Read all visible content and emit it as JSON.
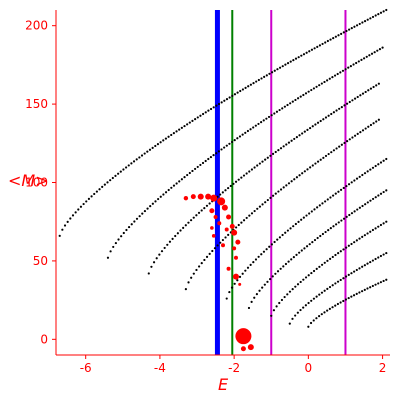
{
  "chart_data": {
    "type": "scatter",
    "xlabel": "E",
    "ylabel": "<M>",
    "xlim": [
      -6.8,
      2.2
    ],
    "ylim": [
      -10,
      210
    ],
    "xticks": [
      -6,
      -4,
      -2,
      0,
      2
    ],
    "yticks": [
      0,
      50,
      100,
      150,
      200
    ],
    "grid": false,
    "colors": {
      "axes": "#ff0000",
      "points": "#000000",
      "highlight": "#ff0000"
    },
    "vertical_lines": [
      {
        "x": -2.45,
        "color": "#0000ff",
        "kind": "thick"
      },
      {
        "x": -2.05,
        "color": "#008000",
        "kind": "thin"
      },
      {
        "x": -1.0,
        "color": "#cc00cc",
        "kind": "thin"
      },
      {
        "x": 1.0,
        "color": "#cc00cc",
        "kind": "thin"
      }
    ],
    "series": [
      {
        "x_start": -6.7,
        "x_end": 2.1,
        "y_start": 66,
        "y_end": 210
      },
      {
        "x_start": -5.4,
        "x_end": 2.0,
        "y_start": 52,
        "y_end": 186
      },
      {
        "x_start": -4.3,
        "x_end": 1.9,
        "y_start": 42,
        "y_end": 163
      },
      {
        "x_start": -3.3,
        "x_end": 1.9,
        "y_start": 32,
        "y_end": 140
      },
      {
        "x_start": -2.2,
        "x_end": 2.1,
        "y_start": 26,
        "y_end": 115
      },
      {
        "x_start": -1.6,
        "x_end": 2.1,
        "y_start": 20,
        "y_end": 95
      },
      {
        "x_start": -1.0,
        "x_end": 2.1,
        "y_start": 15,
        "y_end": 75
      },
      {
        "x_start": -0.5,
        "x_end": 2.1,
        "y_start": 10,
        "y_end": 55
      },
      {
        "x_start": 0.0,
        "x_end": 2.1,
        "y_start": 8,
        "y_end": 38
      }
    ],
    "highlight_points": [
      {
        "x": -3.3,
        "y": 90,
        "r": 2.2
      },
      {
        "x": -3.1,
        "y": 91,
        "r": 2.5
      },
      {
        "x": -2.9,
        "y": 91,
        "r": 3
      },
      {
        "x": -2.7,
        "y": 91,
        "r": 3
      },
      {
        "x": -2.55,
        "y": 90,
        "r": 3.5
      },
      {
        "x": -2.35,
        "y": 88,
        "r": 4
      },
      {
        "x": -2.25,
        "y": 84,
        "r": 3
      },
      {
        "x": -2.6,
        "y": 82,
        "r": 2.5
      },
      {
        "x": -2.15,
        "y": 78,
        "r": 2.5
      },
      {
        "x": -2.05,
        "y": 72,
        "r": 2.5
      },
      {
        "x": -2.2,
        "y": 70,
        "r": 2
      },
      {
        "x": -2.0,
        "y": 68,
        "r": 3
      },
      {
        "x": -1.9,
        "y": 62,
        "r": 2.5
      },
      {
        "x": -2.0,
        "y": 58,
        "r": 2
      },
      {
        "x": -2.3,
        "y": 60,
        "r": 2
      },
      {
        "x": -1.95,
        "y": 52,
        "r": 2
      },
      {
        "x": -1.95,
        "y": 40,
        "r": 3
      },
      {
        "x": -2.15,
        "y": 45,
        "r": 2
      },
      {
        "x": -2.5,
        "y": 78,
        "r": 2
      },
      {
        "x": -2.4,
        "y": 74,
        "r": 2
      },
      {
        "x": -2.55,
        "y": 66,
        "r": 1.8
      },
      {
        "x": -1.75,
        "y": 2,
        "r": 8
      },
      {
        "x": -1.55,
        "y": -5,
        "r": 3
      },
      {
        "x": -1.75,
        "y": -6,
        "r": 2.5
      },
      {
        "x": -2.6,
        "y": 71,
        "r": 1.8
      },
      {
        "x": -1.85,
        "y": 35,
        "r": 1.5
      }
    ]
  }
}
